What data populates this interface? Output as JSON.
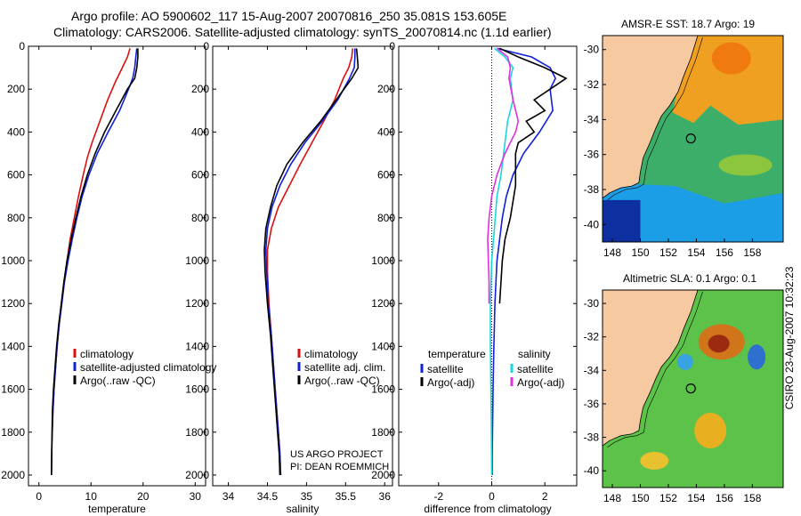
{
  "header": {
    "line1": "Argo profile: AO 5900602_117 15-Aug-2007 20070816_250 35.081S 153.605E",
    "line2": "Climatology: CARS2006. Satellite-adjusted climatology: synTS_20070814.nc (1.1d earlier)"
  },
  "colors": {
    "climatology": "#dd1010",
    "satellite": "#1020dd",
    "argo": "#000000",
    "salinity_satellite": "#18d6e0",
    "salinity_argo": "#e030e0",
    "land": "#f6c9a0"
  },
  "chart_data": [
    {
      "type": "line",
      "panel": "temperature",
      "xlabel": "temperature",
      "ylabel": "",
      "xlim": [
        -2,
        32
      ],
      "ylim": [
        2050,
        0
      ],
      "xticks": [
        0,
        10,
        20,
        30
      ],
      "yticks": [
        0,
        200,
        400,
        600,
        800,
        1000,
        1200,
        1400,
        1600,
        1800,
        2000
      ],
      "legend": [
        "climatology",
        "satellite-adjusted climatology",
        "Argo(..raw -QC)"
      ],
      "legend_position": "lower-center",
      "series": [
        {
          "name": "climatology",
          "color_key": "climatology",
          "x": [
            17.5,
            17.0,
            16.0,
            14.6,
            13.2,
            11.7,
            10.2,
            9.3,
            8.5,
            7.6,
            6.8,
            6.0,
            5.4,
            4.8,
            4.3,
            3.9,
            3.5,
            3.2,
            2.9,
            2.7,
            2.5,
            2.4
          ],
          "y": [
            10,
            50,
            100,
            170,
            250,
            350,
            450,
            520,
            600,
            700,
            800,
            900,
            1000,
            1100,
            1200,
            1300,
            1400,
            1500,
            1600,
            1700,
            1850,
            2000
          ]
        },
        {
          "name": "satellite-adjusted climatology",
          "color_key": "satellite",
          "x": [
            18.8,
            18.6,
            18.4,
            18.0,
            17.2,
            15.5,
            13.3,
            11.2,
            9.6,
            8.3,
            7.3,
            6.4,
            5.6,
            4.9,
            4.4,
            3.9,
            3.5,
            3.2,
            2.9,
            2.7,
            2.5,
            2.4
          ],
          "y": [
            10,
            50,
            100,
            150,
            200,
            300,
            400,
            500,
            600,
            700,
            800,
            900,
            1000,
            1100,
            1200,
            1300,
            1400,
            1500,
            1600,
            1700,
            1850,
            2000
          ]
        },
        {
          "name": "Argo(..raw -QC)",
          "color_key": "argo",
          "x": [
            19.0,
            19.0,
            18.8,
            18.4,
            17.0,
            14.8,
            12.6,
            10.8,
            9.3,
            8.1,
            7.1,
            6.2,
            5.4,
            4.8,
            4.3,
            3.8,
            3.4,
            3.1,
            2.8,
            2.6,
            2.5,
            2.4
          ],
          "y": [
            10,
            50,
            100,
            150,
            200,
            300,
            400,
            500,
            600,
            700,
            800,
            900,
            1000,
            1100,
            1200,
            1300,
            1400,
            1500,
            1600,
            1700,
            1850,
            2000
          ]
        }
      ]
    },
    {
      "type": "line",
      "panel": "salinity",
      "xlabel": "salinity",
      "ylabel": "",
      "xlim": [
        33.8,
        36.1
      ],
      "ylim": [
        2050,
        0
      ],
      "xticks": [
        34,
        34.5,
        35,
        35.5,
        36
      ],
      "yticks": [
        0,
        200,
        400,
        600,
        800,
        1000,
        1200,
        1400,
        1600,
        1800,
        2000
      ],
      "legend": [
        "climatology",
        "satellite adj. clim.",
        "Argo(..raw -QC)"
      ],
      "legend_position": "lower-center",
      "footer": [
        "US ARGO PROJECT",
        "PI: DEAN ROEMMICH"
      ],
      "series": [
        {
          "name": "climatology",
          "color_key": "climatology",
          "x": [
            35.59,
            35.58,
            35.54,
            35.47,
            35.36,
            35.22,
            35.07,
            34.92,
            34.78,
            34.64,
            34.55,
            34.5,
            34.5,
            34.52,
            34.55,
            34.58,
            34.61,
            34.64,
            34.66,
            34.67
          ],
          "y": [
            10,
            50,
            100,
            150,
            250,
            350,
            450,
            550,
            650,
            750,
            850,
            950,
            1050,
            1200,
            1350,
            1500,
            1650,
            1800,
            1900,
            2000
          ]
        },
        {
          "name": "satellite adj. clim.",
          "color_key": "satellite",
          "x": [
            35.62,
            35.62,
            35.61,
            35.55,
            35.4,
            35.2,
            34.98,
            34.8,
            34.66,
            34.56,
            34.5,
            34.48,
            34.49,
            34.51,
            34.55,
            34.58,
            34.61,
            34.64,
            34.66,
            34.67
          ],
          "y": [
            10,
            50,
            100,
            150,
            250,
            350,
            450,
            550,
            650,
            750,
            850,
            950,
            1050,
            1200,
            1350,
            1500,
            1650,
            1800,
            1900,
            2000
          ]
        },
        {
          "name": "Argo(..raw -QC)",
          "color_key": "argo",
          "x": [
            35.64,
            35.65,
            35.66,
            35.58,
            35.38,
            35.18,
            34.95,
            34.75,
            34.62,
            34.54,
            34.48,
            34.46,
            34.47,
            34.5,
            34.54,
            34.57,
            34.6,
            34.63,
            34.65,
            34.66
          ],
          "y": [
            10,
            50,
            100,
            150,
            250,
            350,
            450,
            550,
            650,
            750,
            850,
            950,
            1050,
            1200,
            1350,
            1500,
            1650,
            1800,
            1900,
            2000
          ]
        }
      ]
    },
    {
      "type": "line",
      "panel": "difference",
      "xlabel": "difference from climatology",
      "ylabel": "",
      "xlim": [
        -3.5,
        3.2
      ],
      "ylim": [
        2050,
        0
      ],
      "xticks": [
        -2,
        0,
        2
      ],
      "yticks": [
        0,
        200,
        400,
        600,
        800,
        1000,
        1200,
        1400,
        1600,
        1800,
        2000
      ],
      "zero_line": "dotted",
      "legend": [
        "temperature",
        "satellite",
        "Argo(-adj)",
        "salinity",
        "satellite",
        "Argo(-adj)"
      ],
      "legend_position": "lower-center",
      "series": [
        {
          "name": "temperature satellite",
          "color_key": "satellite",
          "x": [
            0.2,
            1.5,
            2.2,
            2.4,
            2.2,
            2.3,
            1.8,
            1.2,
            0.8,
            0.55,
            0.4,
            0.3,
            0.2,
            0.12,
            0.08,
            0.05,
            0.03,
            0.02,
            0.02
          ],
          "y": [
            10,
            50,
            100,
            150,
            200,
            300,
            400,
            500,
            600,
            700,
            800,
            900,
            1000,
            1200,
            1400,
            1600,
            1800,
            1900,
            2000
          ]
        },
        {
          "name": "temperature Argo(-adj)",
          "color_key": "argo",
          "x": [
            0.3,
            1.0,
            2.0,
            2.8,
            2.2,
            1.6,
            2.0,
            1.3,
            1.6,
            1.0,
            0.9,
            0.9,
            0.7,
            0.5,
            0.4,
            0.3
          ],
          "y": [
            10,
            50,
            100,
            150,
            200,
            250,
            300,
            350,
            400,
            450,
            500,
            650,
            800,
            900,
            1000,
            1200
          ]
        },
        {
          "name": "salinity satellite",
          "color_key": "salinity_satellite",
          "x": [
            0.1,
            0.5,
            0.8,
            0.7,
            0.8,
            0.6,
            0.5,
            0.35,
            0.2,
            0.1,
            0.0,
            -0.05,
            -0.05,
            -0.02,
            0.0
          ],
          "y": [
            10,
            50,
            100,
            150,
            250,
            350,
            450,
            600,
            700,
            850,
            1000,
            1200,
            1400,
            1700,
            2000
          ]
        },
        {
          "name": "salinity Argo(-adj)",
          "color_key": "salinity_argo",
          "x": [
            0.2,
            0.6,
            0.7,
            0.65,
            0.8,
            1.0,
            0.9,
            0.5,
            0.2,
            0.0,
            -0.1,
            -0.15,
            -0.1,
            -0.1
          ],
          "y": [
            10,
            50,
            100,
            150,
            250,
            350,
            400,
            500,
            600,
            700,
            800,
            900,
            1100,
            1200
          ]
        }
      ]
    },
    {
      "type": "heatmap",
      "panel": "sst-map",
      "title": "AMSR-E SST: 18.7 Argo: 19",
      "xlim": [
        147.3,
        160.2
      ],
      "ylim": [
        -41,
        -29.2
      ],
      "xticks": [
        148,
        150,
        152,
        154,
        156,
        158
      ],
      "yticks": [
        -30,
        -32,
        -34,
        -36,
        -38,
        -40
      ],
      "marker": {
        "lon": 153.605,
        "lat": -35.081
      }
    },
    {
      "type": "heatmap",
      "panel": "sla-map",
      "title": "Altimetric SLA: 0.1 Argo: 0.1",
      "xlim": [
        147.3,
        160.2
      ],
      "ylim": [
        -41,
        -29.2
      ],
      "xticks": [
        148,
        150,
        152,
        154,
        156,
        158
      ],
      "yticks": [
        -30,
        -32,
        -34,
        -36,
        -38,
        -40
      ],
      "marker": {
        "lon": 153.605,
        "lat": -35.081
      }
    }
  ],
  "stamp": "CSIRO 23-Aug-2007 10:32:23"
}
